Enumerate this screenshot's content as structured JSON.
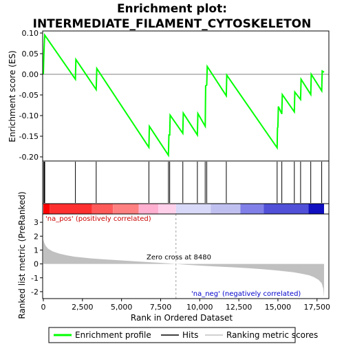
{
  "chart_data": [
    {
      "type": "line",
      "title_line1": "Enrichment plot:",
      "title_line2": "INTERMEDIATE_FILAMENT_CYTOSKELETON",
      "ylabel": "Enrichment score (ES)",
      "ylim": [
        -0.21,
        0.105
      ],
      "yticks": [
        "0.10",
        "0.05",
        "0.00",
        "-0.05",
        "-0.10",
        "-0.15",
        "-0.20"
      ],
      "ytick_values": [
        0.1,
        0.05,
        0.0,
        -0.05,
        -0.1,
        -0.15,
        -0.2
      ],
      "series": [
        {
          "name": "Enrichment profile",
          "color": "#00ff00",
          "x": [
            0,
            30,
            60,
            90,
            2050,
            2080,
            3380,
            3420,
            6750,
            6780,
            8000,
            8030,
            8080,
            8110,
            8920,
            8950,
            9850,
            9880,
            10350,
            10380,
            10450,
            10480,
            11700,
            11730,
            14950,
            14970,
            15000,
            15030,
            15250,
            15280,
            16050,
            16080,
            16450,
            16480,
            17100,
            17130,
            17800,
            17830,
            17950
          ],
          "y": [
            0.0,
            0.045,
            0.075,
            0.095,
            -0.012,
            0.036,
            -0.037,
            0.014,
            -0.177,
            -0.126,
            -0.196,
            -0.147,
            -0.147,
            -0.099,
            -0.143,
            -0.094,
            -0.147,
            -0.095,
            -0.126,
            -0.028,
            -0.026,
            0.019,
            -0.052,
            -0.002,
            -0.178,
            -0.13,
            -0.128,
            -0.078,
            -0.096,
            -0.049,
            -0.091,
            -0.043,
            -0.061,
            -0.012,
            -0.049,
            0.0,
            -0.04,
            0.008,
            0.005
          ]
        }
      ],
      "hits_x": [
        30,
        60,
        90,
        2050,
        3380,
        6750,
        8000,
        8080,
        8920,
        9850,
        10350,
        10450,
        11700,
        14950,
        15250,
        16050,
        16450,
        17100,
        17800
      ]
    },
    {
      "type": "heatmap",
      "colors": [
        "#ff0000",
        "#ff3030",
        "#ff5a5a",
        "#ff8080",
        "#ffb0d0",
        "#ffd0ea",
        "#d8d8f8",
        "#c0c0f0",
        "#8080e8",
        "#5050d8",
        "#1010c0"
      ],
      "bounds": [
        0,
        400,
        3100,
        4450,
        6100,
        7350,
        8480,
        10700,
        12600,
        14100,
        16950,
        17950
      ]
    },
    {
      "type": "area",
      "ylabel": "Ranked list metric (PreRanked)",
      "xlabel": "Rank in Ordered Dataset",
      "xlim": [
        0,
        18500
      ],
      "ylim": [
        -2.5,
        3.6
      ],
      "xticks": [
        "0",
        "2,500",
        "5,000",
        "7,500",
        "10,000",
        "12,500",
        "15,000",
        "17,500"
      ],
      "xtick_values": [
        0,
        2500,
        5000,
        7500,
        10000,
        12500,
        15000,
        17500
      ],
      "yticks": [
        "3",
        "2",
        "1",
        "0",
        "-1",
        "-2"
      ],
      "ytick_values": [
        3,
        2,
        1,
        0,
        -1,
        -2
      ],
      "x": [
        0,
        50,
        150,
        300,
        600,
        1000,
        1500,
        2000,
        3000,
        4000,
        5000,
        6000,
        7000,
        8000,
        8480,
        9000,
        10000,
        11000,
        12000,
        13000,
        14000,
        15000,
        16000,
        16500,
        17000,
        17300,
        17600,
        17800,
        17900,
        17950
      ],
      "values": [
        1.75,
        1.55,
        1.3,
        1.1,
        0.9,
        0.75,
        0.62,
        0.52,
        0.4,
        0.32,
        0.25,
        0.18,
        0.11,
        0.04,
        0.0,
        -0.05,
        -0.12,
        -0.18,
        -0.24,
        -0.3,
        -0.38,
        -0.48,
        -0.6,
        -0.7,
        -0.82,
        -0.95,
        -1.15,
        -1.4,
        -1.8,
        -2.4
      ],
      "pos_label": "'na_pos' (positively correlated)",
      "neg_label": "'na_neg' (negatively correlated)",
      "zero_cross_label": "Zero cross at 8480",
      "zero_cross": 8480
    }
  ],
  "legend": {
    "items": [
      {
        "label": "Enrichment profile",
        "color": "#00ff00"
      },
      {
        "label": "Hits",
        "color": "#000000"
      },
      {
        "label": "Ranking metric scores",
        "color": "#c0c0c0"
      }
    ]
  }
}
